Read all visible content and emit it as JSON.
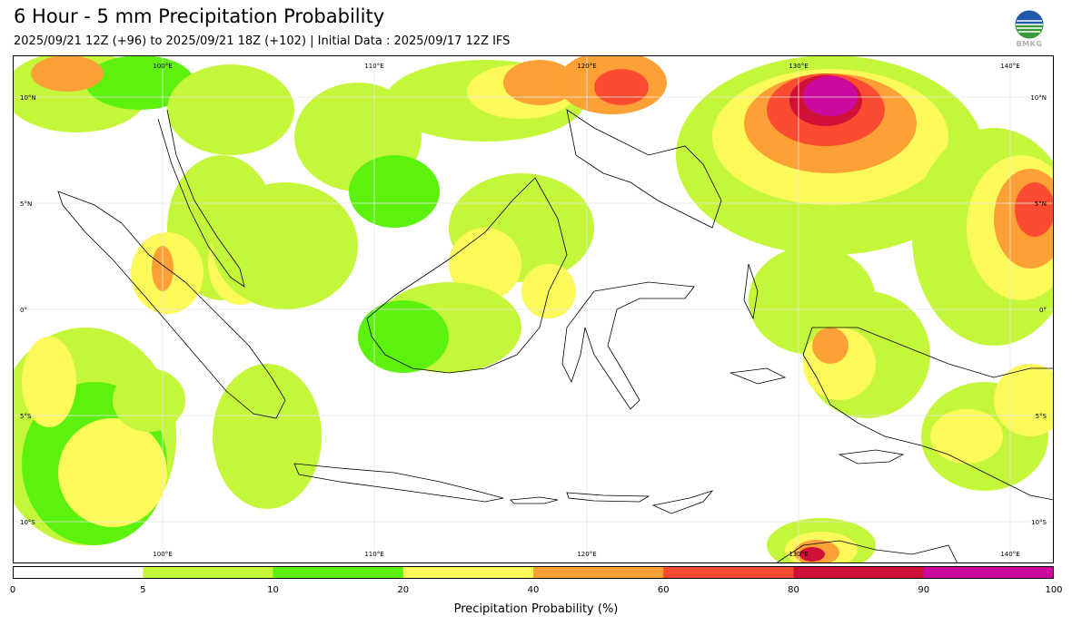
{
  "header": {
    "title": "6 Hour - 5 mm Precipitation Probability",
    "subtitle": "2025/09/21 12Z (+96) to 2025/09/21 18Z (+102) | Initial Data : 2025/09/17 12Z IFS",
    "logo_text": "BMKG"
  },
  "map": {
    "region": "Indonesia",
    "lon_labels": [
      "100°E",
      "110°E",
      "120°E",
      "130°E",
      "140°E"
    ],
    "lat_labels": [
      "10°N",
      "5°N",
      "0°",
      "5°S",
      "10°S"
    ],
    "land_color": "#ffffff",
    "coast_color": "#000000"
  },
  "colorbar": {
    "label": "Precipitation Probability (%)",
    "ticks": [
      "0",
      "5",
      "10",
      "20",
      "40",
      "60",
      "80",
      "90",
      "100"
    ],
    "bins": [
      {
        "from": 0,
        "to": 5,
        "color": "#ffffff"
      },
      {
        "from": 5,
        "to": 10,
        "color": "#c4f73a"
      },
      {
        "from": 10,
        "to": 20,
        "color": "#5df20e"
      },
      {
        "from": 20,
        "to": 40,
        "color": "#fcfa5b"
      },
      {
        "from": 40,
        "to": 60,
        "color": "#fda035"
      },
      {
        "from": 60,
        "to": 80,
        "color": "#fb4b30"
      },
      {
        "from": 80,
        "to": 90,
        "color": "#d01037"
      },
      {
        "from": 90,
        "to": 100,
        "color": "#cb0aa0"
      }
    ]
  }
}
